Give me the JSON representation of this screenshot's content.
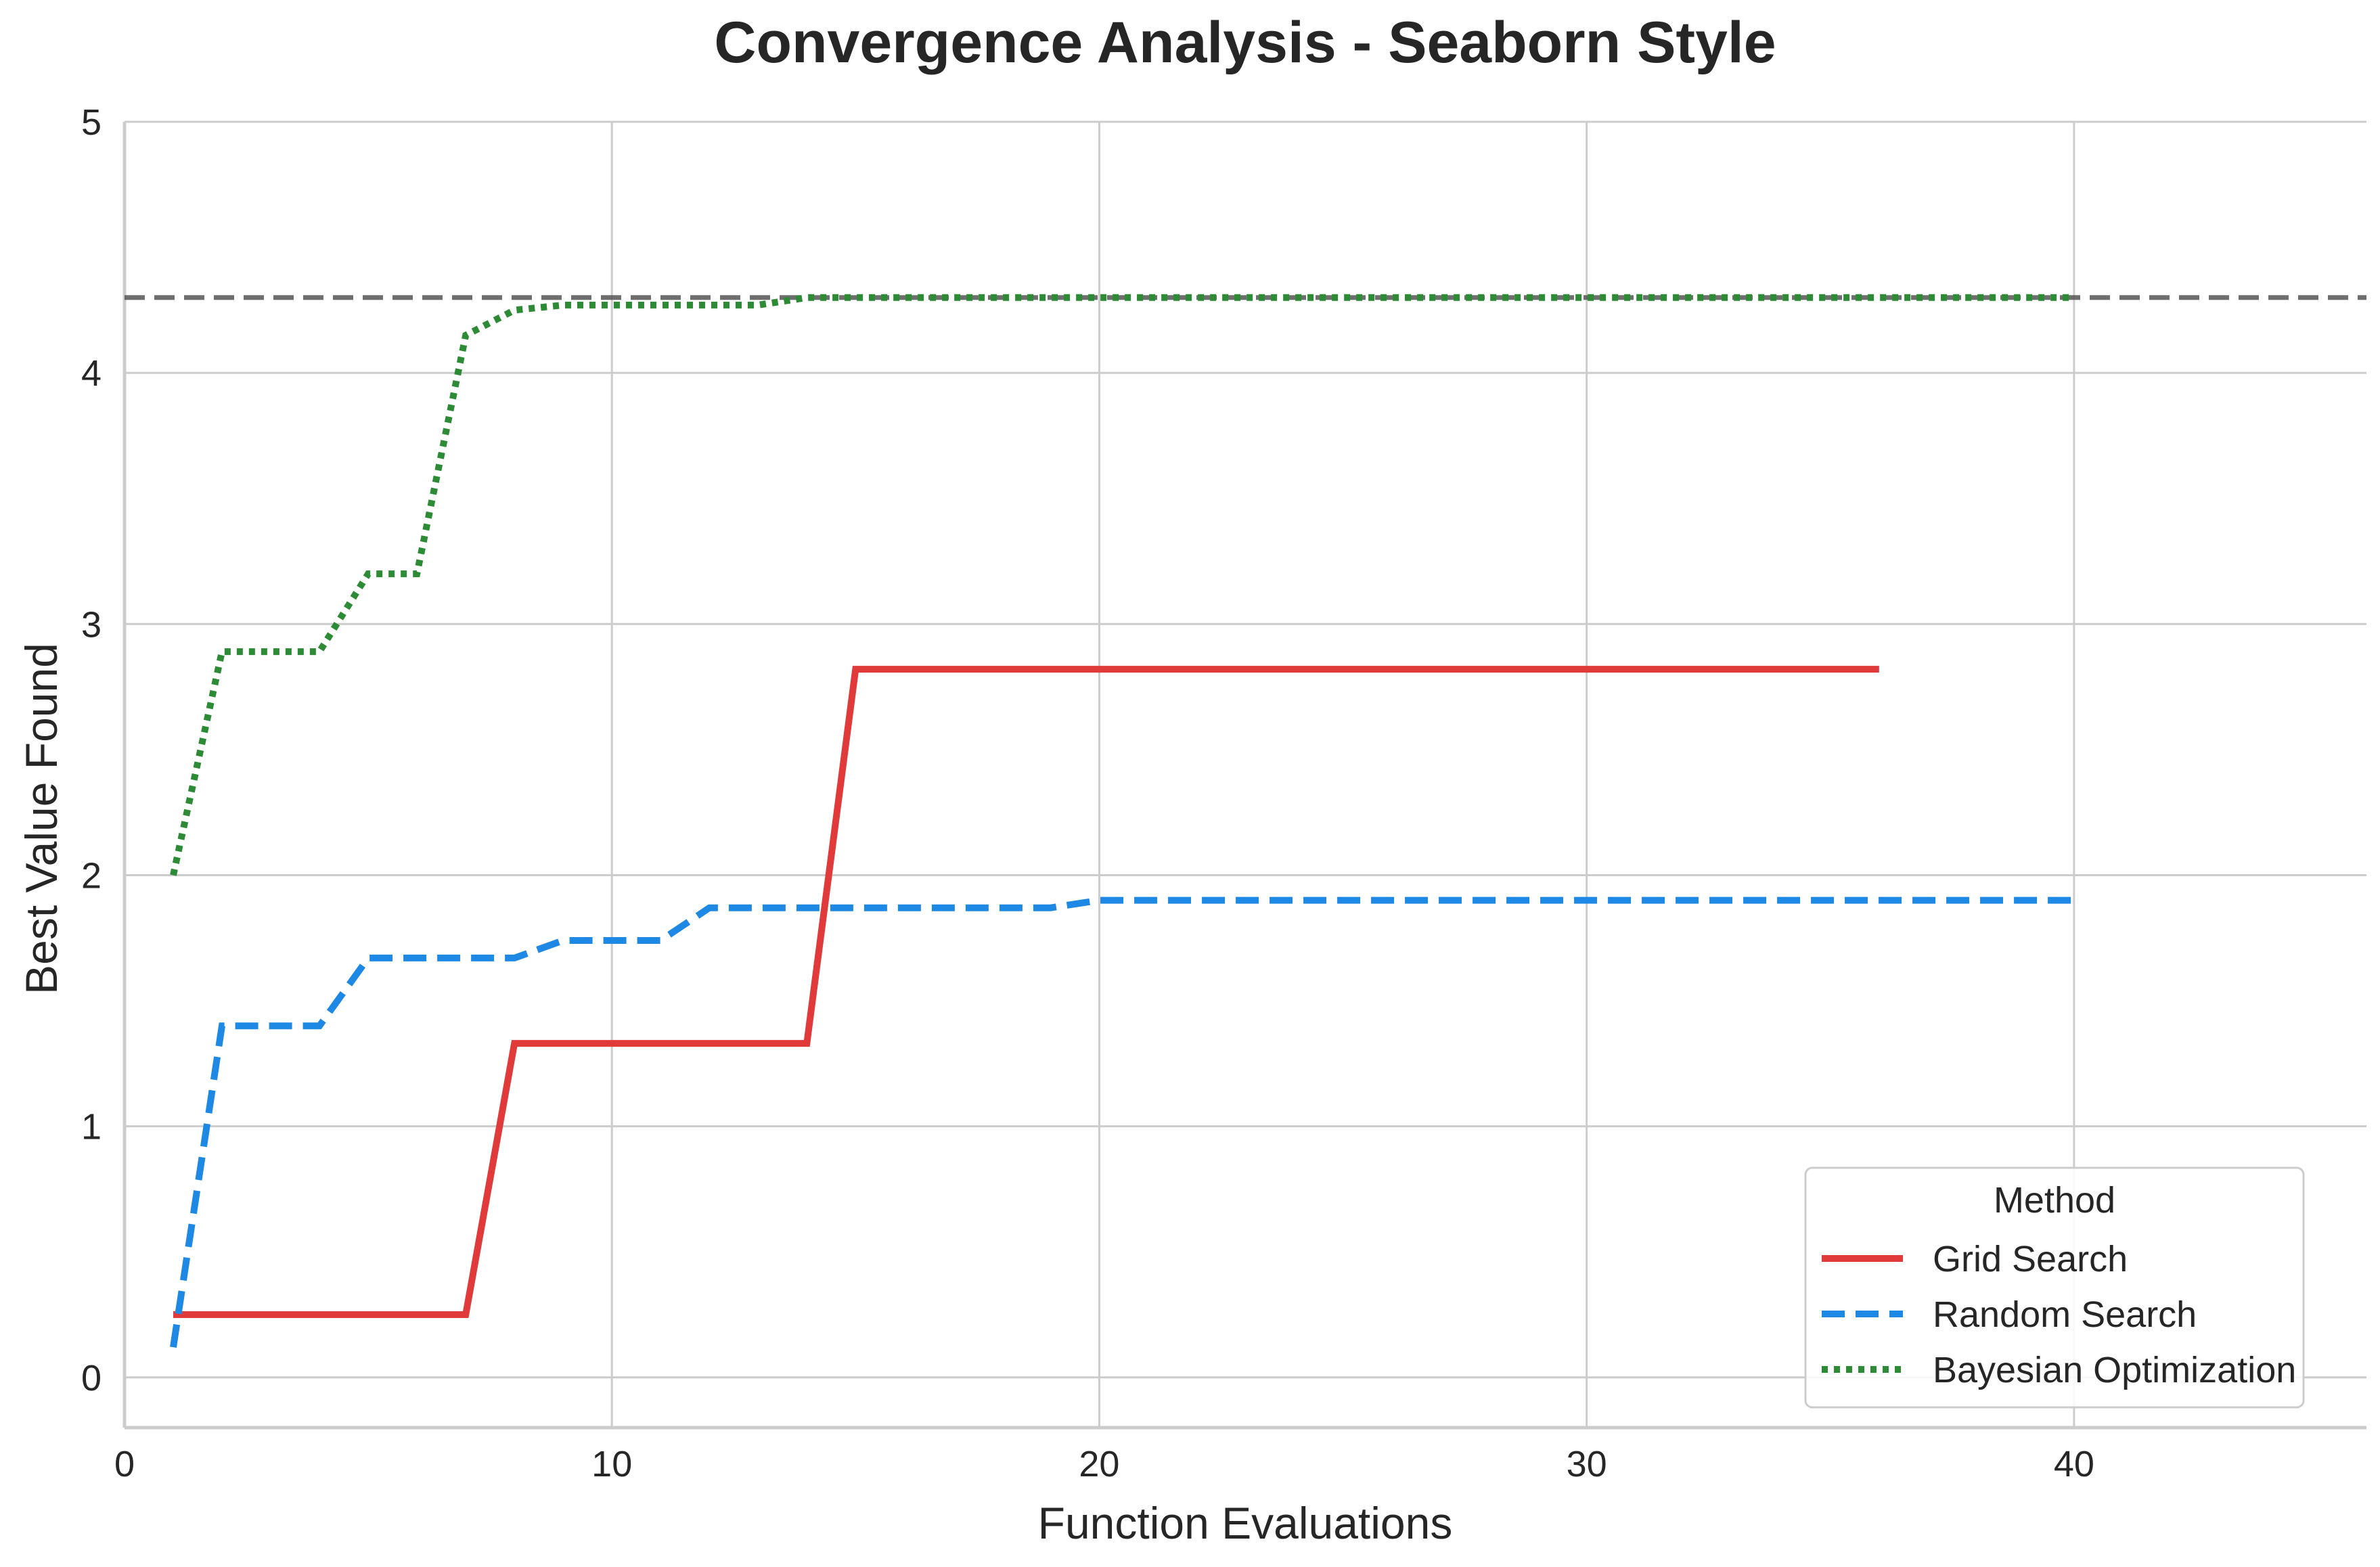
{
  "chart_data": {
    "type": "line",
    "title": "Convergence Analysis - Seaborn Style",
    "xlabel": "Function Evaluations",
    "ylabel": "Best Value Found",
    "xlim": [
      0,
      46
    ],
    "ylim": [
      -0.2,
      5
    ],
    "xticks": [
      0,
      10,
      20,
      30,
      40
    ],
    "yticks": [
      0,
      1,
      2,
      3,
      4,
      5
    ],
    "grid": true,
    "legend": {
      "title": "Method",
      "position": "lower-right"
    },
    "reference_line": {
      "y": 4.3,
      "style": "dashed",
      "color": "#555555"
    },
    "series": [
      {
        "name": "Grid Search",
        "color": "#e03a3a",
        "style": "solid",
        "points": [
          [
            1,
            0.25
          ],
          [
            2,
            0.25
          ],
          [
            3,
            0.25
          ],
          [
            4,
            0.25
          ],
          [
            5,
            0.25
          ],
          [
            6,
            0.25
          ],
          [
            7,
            0.25
          ],
          [
            8,
            1.33
          ],
          [
            9,
            1.33
          ],
          [
            10,
            1.33
          ],
          [
            11,
            1.33
          ],
          [
            12,
            1.33
          ],
          [
            13,
            1.33
          ],
          [
            14,
            1.33
          ],
          [
            15,
            2.82
          ],
          [
            16,
            2.82
          ],
          [
            17,
            2.82
          ],
          [
            18,
            2.82
          ],
          [
            19,
            2.82
          ],
          [
            20,
            2.82
          ],
          [
            21,
            2.82
          ],
          [
            22,
            2.82
          ],
          [
            23,
            2.82
          ],
          [
            24,
            2.82
          ],
          [
            25,
            2.82
          ],
          [
            26,
            2.82
          ],
          [
            27,
            2.82
          ],
          [
            28,
            2.82
          ],
          [
            29,
            2.82
          ],
          [
            30,
            2.82
          ],
          [
            31,
            2.82
          ],
          [
            32,
            2.82
          ],
          [
            33,
            2.82
          ],
          [
            34,
            2.82
          ],
          [
            35,
            2.82
          ],
          [
            36,
            2.82
          ]
        ]
      },
      {
        "name": "Random Search",
        "color": "#1e88e5",
        "style": "dashed",
        "points": [
          [
            1,
            0.12
          ],
          [
            2,
            1.4
          ],
          [
            3,
            1.4
          ],
          [
            4,
            1.4
          ],
          [
            5,
            1.67
          ],
          [
            6,
            1.67
          ],
          [
            7,
            1.67
          ],
          [
            8,
            1.67
          ],
          [
            9,
            1.74
          ],
          [
            10,
            1.74
          ],
          [
            11,
            1.74
          ],
          [
            12,
            1.87
          ],
          [
            13,
            1.87
          ],
          [
            14,
            1.87
          ],
          [
            15,
            1.87
          ],
          [
            16,
            1.87
          ],
          [
            17,
            1.87
          ],
          [
            18,
            1.87
          ],
          [
            19,
            1.87
          ],
          [
            20,
            1.9
          ],
          [
            21,
            1.9
          ],
          [
            22,
            1.9
          ],
          [
            23,
            1.9
          ],
          [
            24,
            1.9
          ],
          [
            25,
            1.9
          ],
          [
            26,
            1.9
          ],
          [
            27,
            1.9
          ],
          [
            28,
            1.9
          ],
          [
            29,
            1.9
          ],
          [
            30,
            1.9
          ],
          [
            31,
            1.9
          ],
          [
            32,
            1.9
          ],
          [
            33,
            1.9
          ],
          [
            34,
            1.9
          ],
          [
            35,
            1.9
          ],
          [
            36,
            1.9
          ],
          [
            37,
            1.9
          ],
          [
            38,
            1.9
          ],
          [
            39,
            1.9
          ],
          [
            40,
            1.9
          ]
        ]
      },
      {
        "name": "Bayesian Optimization",
        "color": "#2e8b35",
        "style": "dotted",
        "points": [
          [
            1,
            2.0
          ],
          [
            2,
            2.89
          ],
          [
            3,
            2.89
          ],
          [
            4,
            2.89
          ],
          [
            5,
            3.2
          ],
          [
            6,
            3.2
          ],
          [
            7,
            4.15
          ],
          [
            8,
            4.25
          ],
          [
            9,
            4.27
          ],
          [
            10,
            4.27
          ],
          [
            11,
            4.27
          ],
          [
            12,
            4.27
          ],
          [
            13,
            4.27
          ],
          [
            14,
            4.3
          ],
          [
            15,
            4.3
          ],
          [
            16,
            4.3
          ],
          [
            17,
            4.3
          ],
          [
            18,
            4.3
          ],
          [
            19,
            4.3
          ],
          [
            20,
            4.3
          ],
          [
            21,
            4.3
          ],
          [
            22,
            4.3
          ],
          [
            23,
            4.3
          ],
          [
            24,
            4.3
          ],
          [
            25,
            4.3
          ],
          [
            26,
            4.3
          ],
          [
            27,
            4.3
          ],
          [
            28,
            4.3
          ],
          [
            29,
            4.3
          ],
          [
            30,
            4.3
          ],
          [
            31,
            4.3
          ],
          [
            32,
            4.3
          ],
          [
            33,
            4.3
          ],
          [
            34,
            4.3
          ],
          [
            35,
            4.3
          ],
          [
            36,
            4.3
          ],
          [
            37,
            4.3
          ],
          [
            38,
            4.3
          ],
          [
            39,
            4.3
          ],
          [
            40,
            4.3
          ]
        ]
      }
    ]
  }
}
